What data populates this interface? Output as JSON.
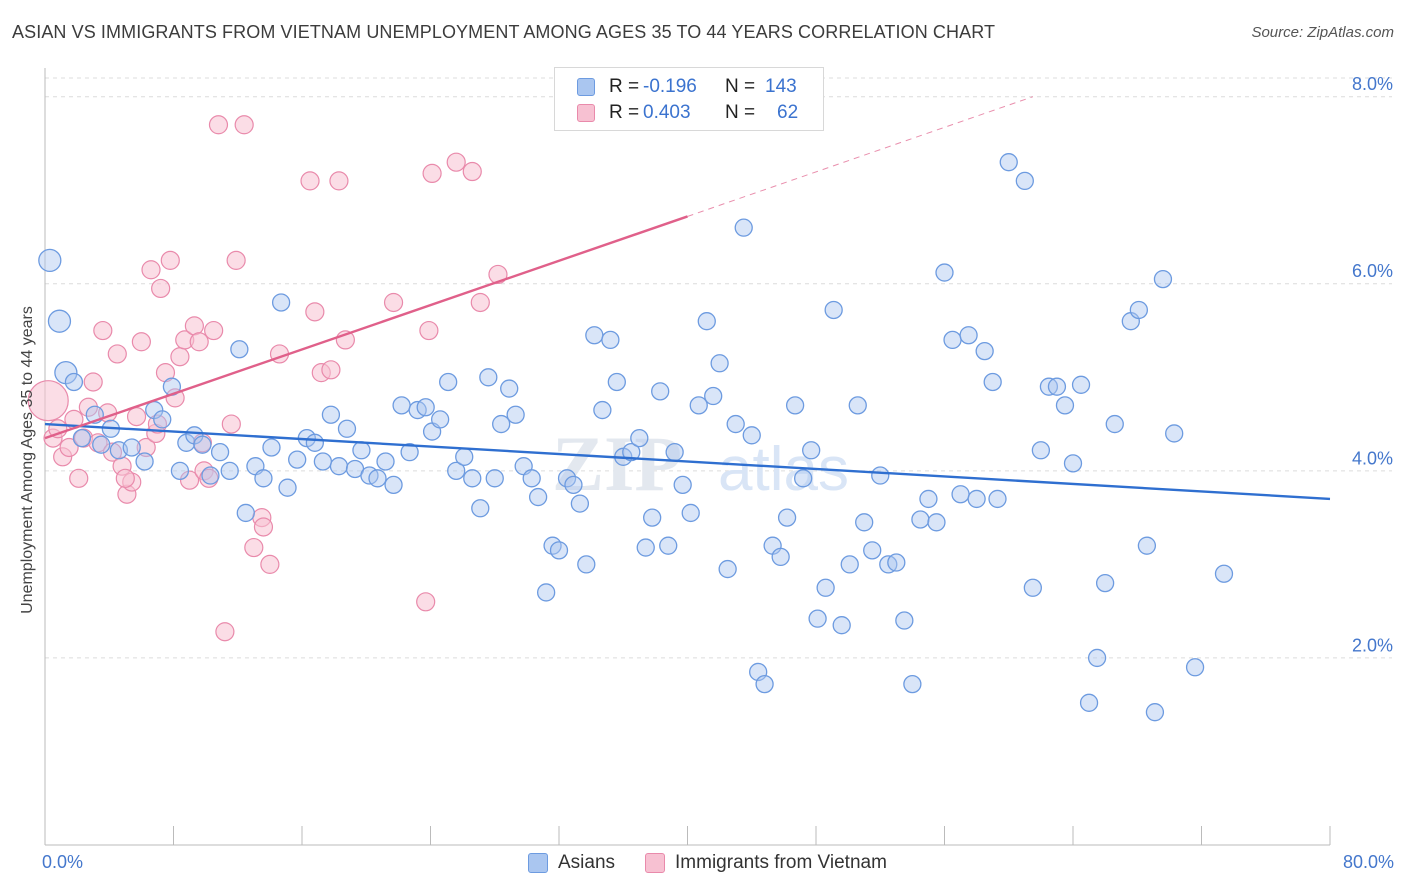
{
  "header": {
    "title": "ASIAN VS IMMIGRANTS FROM VIETNAM UNEMPLOYMENT AMONG AGES 35 TO 44 YEARS CORRELATION CHART",
    "source": "Source: ZipAtlas.com"
  },
  "legend": {
    "rows": [
      {
        "r_label": "R =",
        "r_value": "-0.196",
        "n_label": "N =",
        "n_value": "143"
      },
      {
        "r_label": "R =",
        "r_value": "0.403",
        "n_label": "N =",
        "n_value": "62"
      }
    ],
    "bottom": [
      {
        "label": "Asians",
        "color": "#aac6f0"
      },
      {
        "label": "Immigrants from Vietnam",
        "color": "#f7c1d2"
      }
    ]
  },
  "watermark": {
    "zip": "ZIP",
    "atlas": "atlas"
  },
  "chart_data": {
    "type": "scatter",
    "title": "ASIAN VS IMMIGRANTS FROM VIETNAM UNEMPLOYMENT AMONG AGES 35 TO 44 YEARS CORRELATION CHART",
    "xlabel": "",
    "ylabel": "Unemployment Among Ages 35 to 44 years",
    "xlim": [
      0,
      80
    ],
    "ylim": [
      0,
      8.2
    ],
    "x_tick_labels": [
      "0.0%",
      "80.0%"
    ],
    "y_ticks": [
      {
        "value": 2,
        "label": "2.0%"
      },
      {
        "value": 4,
        "label": "4.0%"
      },
      {
        "value": 6,
        "label": "6.0%"
      },
      {
        "value": 8,
        "label": "8.0%"
      }
    ],
    "grid": "horizontal dashed",
    "colors": {
      "asians": "#6d9be0",
      "asians_fill": "#aac6f0",
      "vietnam": "#e98aab",
      "vietnam_fill": "#f7c1d2",
      "asians_line": "#2f6fd0",
      "vietnam_line": "#e0608a",
      "tick_text": "#4477cc"
    },
    "series": [
      {
        "name": "Asians",
        "trend": {
          "x": [
            0,
            80
          ],
          "y": [
            4.5,
            3.7
          ]
        },
        "points": [
          [
            0.3,
            6.25
          ],
          [
            0.9,
            5.6
          ],
          [
            1.3,
            5.05
          ],
          [
            1.8,
            4.95
          ],
          [
            2.3,
            4.35
          ],
          [
            3.1,
            4.6
          ],
          [
            3.5,
            4.28
          ],
          [
            4.1,
            4.45
          ],
          [
            4.6,
            4.22
          ],
          [
            5.4,
            4.25
          ],
          [
            6.2,
            4.1
          ],
          [
            6.8,
            4.65
          ],
          [
            7.3,
            4.55
          ],
          [
            7.9,
            4.9
          ],
          [
            8.4,
            4.0
          ],
          [
            8.8,
            4.3
          ],
          [
            9.3,
            4.38
          ],
          [
            9.8,
            4.28
          ],
          [
            10.3,
            3.95
          ],
          [
            10.9,
            4.2
          ],
          [
            11.5,
            4.0
          ],
          [
            12.1,
            5.3
          ],
          [
            12.5,
            3.55
          ],
          [
            13.1,
            4.05
          ],
          [
            13.6,
            3.92
          ],
          [
            14.1,
            4.25
          ],
          [
            14.7,
            5.8
          ],
          [
            15.1,
            3.82
          ],
          [
            15.7,
            4.12
          ],
          [
            16.3,
            4.35
          ],
          [
            16.8,
            4.3
          ],
          [
            17.3,
            4.1
          ],
          [
            17.8,
            4.6
          ],
          [
            18.3,
            4.05
          ],
          [
            18.8,
            4.45
          ],
          [
            19.3,
            4.02
          ],
          [
            19.7,
            4.22
          ],
          [
            20.2,
            3.95
          ],
          [
            20.7,
            3.92
          ],
          [
            21.2,
            4.1
          ],
          [
            21.7,
            3.85
          ],
          [
            22.2,
            4.7
          ],
          [
            22.7,
            4.2
          ],
          [
            23.2,
            4.65
          ],
          [
            23.7,
            4.68
          ],
          [
            24.1,
            4.42
          ],
          [
            24.6,
            4.55
          ],
          [
            25.1,
            4.95
          ],
          [
            25.6,
            4.0
          ],
          [
            26.1,
            4.15
          ],
          [
            26.6,
            3.92
          ],
          [
            27.1,
            3.6
          ],
          [
            27.6,
            5.0
          ],
          [
            28.0,
            3.92
          ],
          [
            28.4,
            4.5
          ],
          [
            28.9,
            4.88
          ],
          [
            29.3,
            4.6
          ],
          [
            29.8,
            4.05
          ],
          [
            30.3,
            3.92
          ],
          [
            30.7,
            3.72
          ],
          [
            31.2,
            2.7
          ],
          [
            31.6,
            3.2
          ],
          [
            32.0,
            3.15
          ],
          [
            32.5,
            3.92
          ],
          [
            32.9,
            3.85
          ],
          [
            33.3,
            3.65
          ],
          [
            33.7,
            3.0
          ],
          [
            34.2,
            5.45
          ],
          [
            34.7,
            4.65
          ],
          [
            35.2,
            5.4
          ],
          [
            35.6,
            4.95
          ],
          [
            36.0,
            4.15
          ],
          [
            36.5,
            4.2
          ],
          [
            37.0,
            4.35
          ],
          [
            37.4,
            3.18
          ],
          [
            37.8,
            3.5
          ],
          [
            38.3,
            4.85
          ],
          [
            38.8,
            3.2
          ],
          [
            39.2,
            4.2
          ],
          [
            39.7,
            3.85
          ],
          [
            40.2,
            3.55
          ],
          [
            40.7,
            4.7
          ],
          [
            41.2,
            5.6
          ],
          [
            41.6,
            4.8
          ],
          [
            42.0,
            5.15
          ],
          [
            42.5,
            2.95
          ],
          [
            43.0,
            4.5
          ],
          [
            43.5,
            6.6
          ],
          [
            44.0,
            4.38
          ],
          [
            44.4,
            1.85
          ],
          [
            44.8,
            1.72
          ],
          [
            45.3,
            3.2
          ],
          [
            45.8,
            3.08
          ],
          [
            46.2,
            3.5
          ],
          [
            46.7,
            4.7
          ],
          [
            47.2,
            3.92
          ],
          [
            47.7,
            4.22
          ],
          [
            48.1,
            2.42
          ],
          [
            48.6,
            2.75
          ],
          [
            49.1,
            5.72
          ],
          [
            49.6,
            2.35
          ],
          [
            50.1,
            3.0
          ],
          [
            50.6,
            4.7
          ],
          [
            51.0,
            3.45
          ],
          [
            51.5,
            3.15
          ],
          [
            52.0,
            3.95
          ],
          [
            52.5,
            3.0
          ],
          [
            53.0,
            3.02
          ],
          [
            53.5,
            2.4
          ],
          [
            54.0,
            1.72
          ],
          [
            54.5,
            3.48
          ],
          [
            55.0,
            3.7
          ],
          [
            55.5,
            3.45
          ],
          [
            56.0,
            6.12
          ],
          [
            56.5,
            5.4
          ],
          [
            57.0,
            3.75
          ],
          [
            57.5,
            5.45
          ],
          [
            58.0,
            3.7
          ],
          [
            58.5,
            5.28
          ],
          [
            59.0,
            4.95
          ],
          [
            60.0,
            7.3
          ],
          [
            61.0,
            7.1
          ],
          [
            61.5,
            2.75
          ],
          [
            62.0,
            4.22
          ],
          [
            62.5,
            4.9
          ],
          [
            63.0,
            4.9
          ],
          [
            63.5,
            4.7
          ],
          [
            64.0,
            4.08
          ],
          [
            64.5,
            4.92
          ],
          [
            65.0,
            1.52
          ],
          [
            65.5,
            2.0
          ],
          [
            66.0,
            2.8
          ],
          [
            66.6,
            4.5
          ],
          [
            67.6,
            5.6
          ],
          [
            68.1,
            5.72
          ],
          [
            68.6,
            3.2
          ],
          [
            69.1,
            1.42
          ],
          [
            69.6,
            6.05
          ],
          [
            70.3,
            4.4
          ],
          [
            71.6,
            1.9
          ],
          [
            73.4,
            2.9
          ],
          [
            59.3,
            3.7
          ]
        ]
      },
      {
        "name": "Immigrants from Vietnam",
        "trend": {
          "x": [
            0,
            40
          ],
          "y": [
            4.35,
            6.72
          ],
          "extension": {
            "x": [
              40,
              61.5
            ],
            "y": [
              6.72,
              8.0
            ]
          }
        },
        "points": [
          [
            0.2,
            4.75
          ],
          [
            0.5,
            4.35
          ],
          [
            0.8,
            4.45
          ],
          [
            1.1,
            4.15
          ],
          [
            1.5,
            4.25
          ],
          [
            1.8,
            4.55
          ],
          [
            2.1,
            3.92
          ],
          [
            2.4,
            4.35
          ],
          [
            2.7,
            4.68
          ],
          [
            3.0,
            4.95
          ],
          [
            3.3,
            4.3
          ],
          [
            3.6,
            5.5
          ],
          [
            3.9,
            4.62
          ],
          [
            4.2,
            4.2
          ],
          [
            4.5,
            5.25
          ],
          [
            4.8,
            4.05
          ],
          [
            5.1,
            3.75
          ],
          [
            5.4,
            3.88
          ],
          [
            5.7,
            4.58
          ],
          [
            6.0,
            5.38
          ],
          [
            6.3,
            4.25
          ],
          [
            6.6,
            6.15
          ],
          [
            6.9,
            4.4
          ],
          [
            7.2,
            5.95
          ],
          [
            7.5,
            5.05
          ],
          [
            7.8,
            6.25
          ],
          [
            8.1,
            4.78
          ],
          [
            8.4,
            5.22
          ],
          [
            8.7,
            5.4
          ],
          [
            9.0,
            3.9
          ],
          [
            9.3,
            5.55
          ],
          [
            9.6,
            5.38
          ],
          [
            9.9,
            4.0
          ],
          [
            10.2,
            3.92
          ],
          [
            10.5,
            5.5
          ],
          [
            10.8,
            7.7
          ],
          [
            11.2,
            2.28
          ],
          [
            11.6,
            4.5
          ],
          [
            11.9,
            6.25
          ],
          [
            12.4,
            7.7
          ],
          [
            13.0,
            3.18
          ],
          [
            13.5,
            3.5
          ],
          [
            14.0,
            3.0
          ],
          [
            14.6,
            5.25
          ],
          [
            16.5,
            7.1
          ],
          [
            16.8,
            5.7
          ],
          [
            17.2,
            5.05
          ],
          [
            17.8,
            5.08
          ],
          [
            18.3,
            7.1
          ],
          [
            18.7,
            5.4
          ],
          [
            21.7,
            5.8
          ],
          [
            23.7,
            2.6
          ],
          [
            23.9,
            5.5
          ],
          [
            25.6,
            7.3
          ],
          [
            26.6,
            7.2
          ],
          [
            27.1,
            5.8
          ],
          [
            28.2,
            6.1
          ],
          [
            24.1,
            7.18
          ],
          [
            13.6,
            3.4
          ],
          [
            9.8,
            4.3
          ],
          [
            7.0,
            4.5
          ],
          [
            5.0,
            3.92
          ]
        ]
      }
    ]
  }
}
